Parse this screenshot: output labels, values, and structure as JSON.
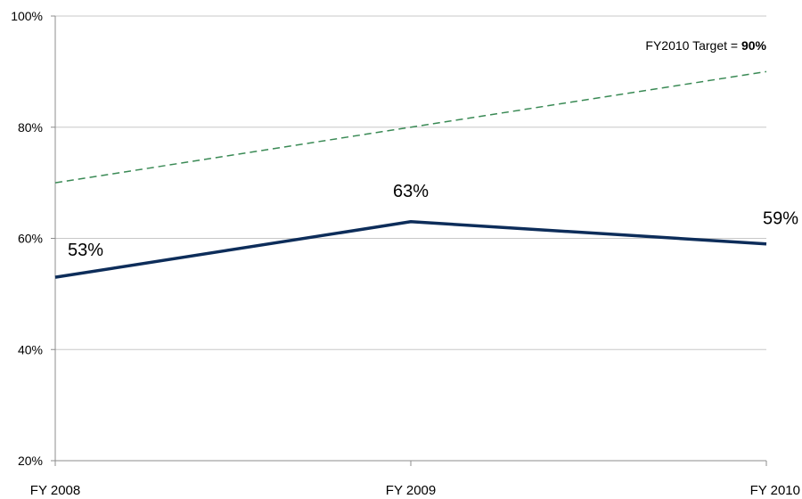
{
  "chart_data": {
    "type": "line",
    "categories": [
      "FY 2008",
      "FY 2009",
      "FY 2010"
    ],
    "ylim": [
      20,
      100
    ],
    "yticks": [
      20,
      40,
      60,
      80,
      100
    ],
    "ytick_labels": [
      "20%",
      "40%",
      "60%",
      "80%",
      "100%"
    ],
    "grid": true,
    "series": [
      {
        "values": [
          53,
          63,
          59
        ],
        "labels": [
          "53%",
          "63%",
          "59%"
        ],
        "color": "#0d2d5a",
        "style": "solid"
      },
      {
        "values": [
          70,
          80,
          90
        ],
        "color": "#3a8a55",
        "style": "dashed"
      }
    ],
    "annotation": {
      "text": "FY2010 Target = ",
      "bold_text": "90%"
    }
  }
}
